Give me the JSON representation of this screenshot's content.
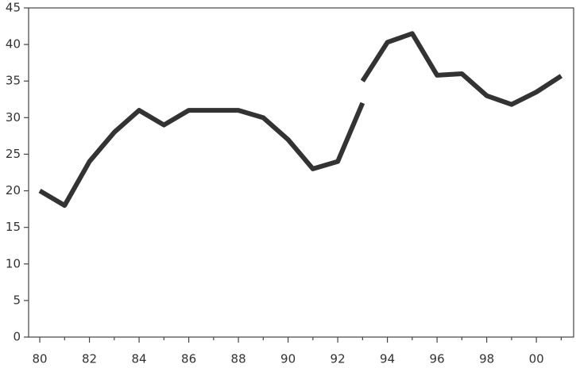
{
  "chart_data": {
    "type": "line",
    "series": [
      {
        "color": "#333333",
        "x": [
          1980,
          1981,
          1982,
          1983,
          1984,
          1985,
          1986,
          1987,
          1988,
          1989,
          1990,
          1991,
          1992,
          1993
        ],
        "values": [
          20,
          18,
          24,
          28,
          31,
          29,
          31,
          31,
          31,
          30,
          27,
          23,
          24,
          32
        ]
      },
      {
        "color": "#333333",
        "x": [
          1993,
          1994,
          1995,
          1996,
          1997,
          1998,
          1999,
          2000,
          2001
        ],
        "values": [
          35,
          40.3,
          41.5,
          35.8,
          36,
          33,
          31.8,
          33.5,
          35.7
        ]
      }
    ],
    "xlim": [
      1979.55,
      2001.5
    ],
    "xticks": [
      {
        "value": 1980,
        "label": "80"
      },
      {
        "value": 1982,
        "label": "82"
      },
      {
        "value": 1984,
        "label": "84"
      },
      {
        "value": 1986,
        "label": "86"
      },
      {
        "value": 1988,
        "label": "88"
      },
      {
        "value": 1990,
        "label": "90"
      },
      {
        "value": 1992,
        "label": "92"
      },
      {
        "value": 1994,
        "label": "94"
      },
      {
        "value": 1996,
        "label": "96"
      },
      {
        "value": 1998,
        "label": "98"
      },
      {
        "value": 2000,
        "label": "00"
      }
    ],
    "xminorticks": [
      1981,
      1983,
      1985,
      1987,
      1989,
      1991,
      1993,
      1995,
      1997,
      1999,
      2001
    ],
    "ylim": [
      0,
      45
    ],
    "yticks": [
      0,
      5,
      10,
      15,
      20,
      25,
      30,
      35,
      40,
      45
    ]
  }
}
